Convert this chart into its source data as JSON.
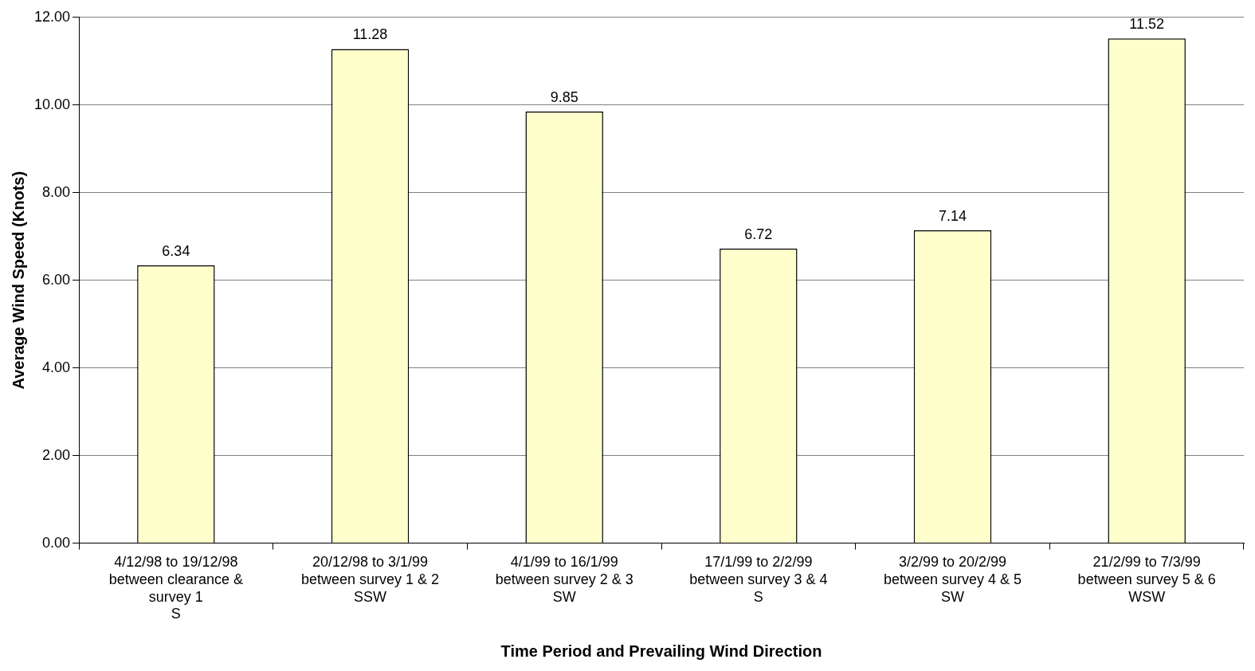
{
  "chart_data": {
    "type": "bar",
    "xlabel": "Time Period and Prevailing Wind Direction",
    "ylabel": "Average Wind Speed (Knots)",
    "categories": [
      "4/12/98 to 19/12/98\nbetween clearance &\nsurvey 1\nS",
      "20/12/98 to 3/1/99\nbetween survey 1 & 2\nSSW",
      "4/1/99 to 16/1/99\nbetween survey 2 & 3\nSW",
      "17/1/99 to 2/2/99\nbetween survey 3 & 4\nS",
      "3/2/99 to 20/2/99\nbetween survey 4 & 5\nSW",
      "21/2/99 to 7/3/99\nbetween survey 5 & 6\nWSW"
    ],
    "values": [
      6.34,
      11.28,
      9.85,
      6.72,
      7.14,
      11.52
    ],
    "color": "#ffffcc",
    "ylim": [
      0,
      12
    ],
    "yticks": [
      {
        "value": 0,
        "label": "0.00"
      },
      {
        "value": 2,
        "label": "2.00"
      },
      {
        "value": 4,
        "label": "4.00"
      },
      {
        "value": 6,
        "label": "6.00"
      },
      {
        "value": 8,
        "label": "8.00"
      },
      {
        "value": 10,
        "label": "10.00"
      },
      {
        "value": 12,
        "label": "12.00"
      }
    ],
    "grid": "y",
    "data_labels": true
  }
}
